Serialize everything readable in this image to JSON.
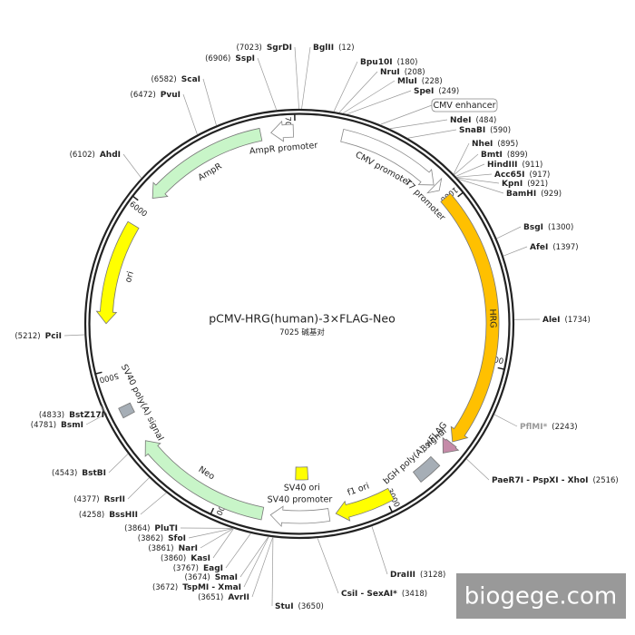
{
  "title": "pCMV-HRG(human)-3×FLAG-Neo",
  "length": 7025,
  "length_unit": "碱基对",
  "ticks": [
    1000,
    2000,
    3000,
    4000,
    5000,
    6000,
    7000
  ],
  "callout": "CMV enhancer",
  "watermark": "biogege.com",
  "features": [
    {
      "name": "CMV promoter",
      "start": 250,
      "end": 860,
      "direction": "forward",
      "color": "#ffffff"
    },
    {
      "name": "T7 promoter",
      "start": 866,
      "end": 905,
      "direction": "forward",
      "color": "#ffffff"
    },
    {
      "name": "HRG",
      "start": 960,
      "end": 2490,
      "direction": "forward",
      "color": "#ffc000"
    },
    {
      "name": "3×FLAG",
      "start": 2500,
      "end": 2575,
      "direction": "forward",
      "color": "#c58aa8"
    },
    {
      "name": "bGH poly(A) signal",
      "start": 2640,
      "end": 2780,
      "direction": "none",
      "color": "#a6aeb6"
    },
    {
      "name": "f1 ori",
      "start": 2960,
      "end": 3300,
      "direction": "forward",
      "color": "#ffff00"
    },
    {
      "name": "SV40 promoter",
      "start": 3340,
      "end": 3680,
      "direction": "forward",
      "color": "#ffffff"
    },
    {
      "name": "SV40 ori",
      "start": 3450,
      "end": 3540,
      "direction": "none",
      "color": "#ffff00"
    },
    {
      "name": "Neo",
      "start": 3727,
      "end": 4543,
      "direction": "forward",
      "color": "#c8f5c8"
    },
    {
      "name": "SV40 poly(A) signal",
      "start": 4720,
      "end": 4780,
      "direction": "none",
      "color": "#a6aeb6"
    },
    {
      "name": "ori",
      "start": 5270,
      "end": 5870,
      "direction": "reverse",
      "color": "#ffff00"
    },
    {
      "name": "AmpR",
      "start": 6060,
      "end": 6800,
      "direction": "reverse",
      "color": "#c8f5c8"
    },
    {
      "name": "AmpR promoter",
      "start": 6860,
      "end": 6990,
      "direction": "reverse",
      "color": "#ffffff"
    }
  ],
  "sites": [
    {
      "name": "BglII",
      "position": {
        "value": 12,
        "label": "(12)"
      }
    },
    {
      "name": "SgrDI",
      "position": {
        "value": 7023,
        "label": "(7023)"
      }
    },
    {
      "name": "SspI",
      "position": {
        "value": 6906,
        "label": "(6906)"
      }
    },
    {
      "name": "Bpu10I",
      "position": {
        "value": 180,
        "label": "(180)"
      }
    },
    {
      "name": "NruI",
      "position": {
        "value": 208,
        "label": "(208)"
      }
    },
    {
      "name": "MluI",
      "position": {
        "value": 228,
        "label": "(228)"
      }
    },
    {
      "name": "SpeI",
      "position": {
        "value": 249,
        "label": "(249)"
      }
    },
    {
      "name": "NdeI",
      "position": {
        "value": 484,
        "label": "(484)"
      }
    },
    {
      "name": "SnaBI",
      "position": {
        "value": 590,
        "label": "(590)"
      }
    },
    {
      "name": "NheI",
      "position": {
        "value": 895,
        "label": "(895)"
      }
    },
    {
      "name": "BmtI",
      "position": {
        "value": 899,
        "label": "(899)"
      }
    },
    {
      "name": "HindIII",
      "position": {
        "value": 911,
        "label": "(911)"
      }
    },
    {
      "name": "Acc65I",
      "position": {
        "value": 917,
        "label": "(917)"
      }
    },
    {
      "name": "KpnI",
      "position": {
        "value": 921,
        "label": "(921)"
      }
    },
    {
      "name": "BamHI",
      "position": {
        "value": 929,
        "label": "(929)"
      }
    },
    {
      "name": "BsgI",
      "position": {
        "value": 1300,
        "label": "(1300)"
      }
    },
    {
      "name": "AfeI",
      "position": {
        "value": 1397,
        "label": "(1397)"
      }
    },
    {
      "name": "AleI",
      "position": {
        "value": 1734,
        "label": "(1734)"
      }
    },
    {
      "name": "PflMI*",
      "position": {
        "value": 2243,
        "label": "(2243)"
      },
      "color": "#999999"
    },
    {
      "name": "PaeR7I - PspXI - XhoI",
      "position": {
        "value": 2516,
        "label": "(2516)"
      }
    },
    {
      "name": "DraIII",
      "position": {
        "value": 3128,
        "label": "(3128)"
      }
    },
    {
      "name": "CsiI - SexAI*",
      "position": {
        "value": 3418,
        "label": "(3418)"
      }
    },
    {
      "name": "StuI",
      "position": {
        "value": 3650,
        "label": "(3650)"
      }
    },
    {
      "name": "AvrII",
      "position": {
        "value": 3651,
        "label": "(3651)"
      }
    },
    {
      "name": "TspMI - XmaI",
      "position": {
        "value": 3672,
        "label": "(3672)"
      }
    },
    {
      "name": "SmaI",
      "position": {
        "value": 3674,
        "label": "(3674)"
      }
    },
    {
      "name": "EagI",
      "position": {
        "value": 3767,
        "label": "(3767)"
      }
    },
    {
      "name": "KasI",
      "position": {
        "value": 3860,
        "label": "(3860)"
      }
    },
    {
      "name": "NarI",
      "position": {
        "value": 3861,
        "label": "(3861)"
      }
    },
    {
      "name": "SfoI",
      "position": {
        "value": 3862,
        "label": "(3862)"
      }
    },
    {
      "name": "PluTI",
      "position": {
        "value": 3864,
        "label": "(3864)"
      }
    },
    {
      "name": "BssHII",
      "position": {
        "value": 4258,
        "label": "(4258)"
      }
    },
    {
      "name": "RsrII",
      "position": {
        "value": 4377,
        "label": "(4377)"
      }
    },
    {
      "name": "BstBI",
      "position": {
        "value": 4543,
        "label": "(4543)"
      }
    },
    {
      "name": "BsmI",
      "position": {
        "value": 4781,
        "label": "(4781)"
      }
    },
    {
      "name": "BstZ17I",
      "position": {
        "value": 4833,
        "label": "(4833)"
      }
    },
    {
      "name": "PciI",
      "position": {
        "value": 5212,
        "label": "(5212)"
      }
    },
    {
      "name": "AhdI",
      "position": {
        "value": 6102,
        "label": "(6102)"
      }
    },
    {
      "name": "PvuI",
      "position": {
        "value": 6472,
        "label": "(6472)"
      }
    },
    {
      "name": "ScaI",
      "position": {
        "value": 6582,
        "label": "(6582)"
      }
    }
  ]
}
